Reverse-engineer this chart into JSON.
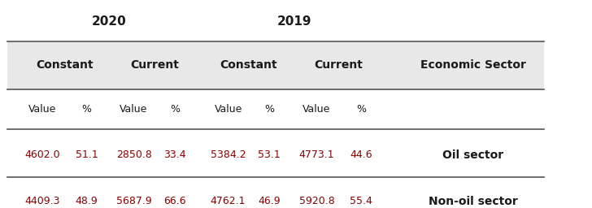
{
  "title_2020": "2020",
  "title_2019": "2019",
  "col_headers": [
    "Constant",
    "Current",
    "Constant",
    "Current",
    "Economic Sector"
  ],
  "sub_headers": [
    "Value",
    "%",
    "Value",
    "%",
    "Value",
    "%",
    "Value",
    "%"
  ],
  "rows": [
    {
      "data": [
        "4602.0",
        "51.1",
        "2850.8",
        "33.4",
        "5384.2",
        "53.1",
        "4773.1",
        "44.6"
      ],
      "label": "Oil sector"
    },
    {
      "data": [
        "4409.3",
        "48.9",
        "5687.9",
        "66.6",
        "4762.1",
        "46.9",
        "5920.8",
        "55.4"
      ],
      "label": "Non-oil sector"
    }
  ],
  "bg_color": "#f0f0f0",
  "header_bg": "#e8e8e8",
  "text_color": "#1a1a1a",
  "data_color": "#8b0000",
  "line_color": "#555555",
  "font_size_year": 11,
  "font_size_header": 10,
  "font_size_subheader": 9,
  "font_size_data": 9,
  "font_size_label": 10
}
